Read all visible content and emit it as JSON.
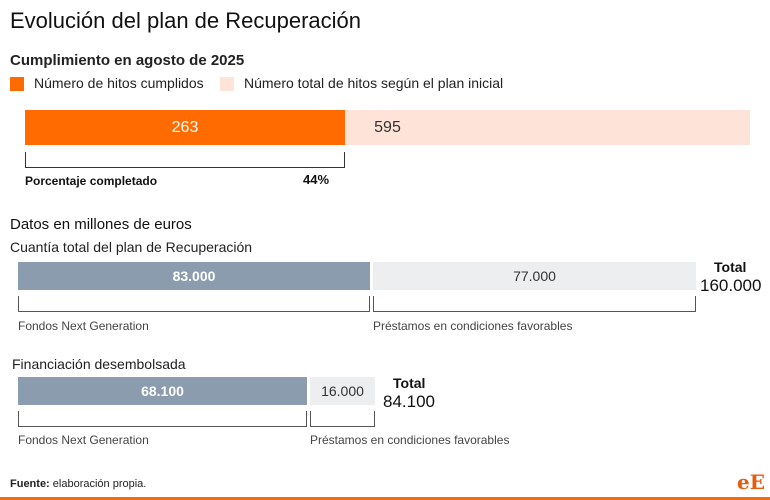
{
  "title": "Evolución del plan de Recuperación",
  "milestones": {
    "subtitle": "Cumplimiento en agosto de 2025",
    "legend": [
      {
        "label": "Número de hitos cumplidos",
        "color": "#ff6b00"
      },
      {
        "label": "Número total de hitos según el plan inicial",
        "color": "#fde3d8"
      }
    ],
    "completed": "263",
    "total": "595",
    "completed_value": 263,
    "total_value": 595,
    "percent_label": "Porcentaje completado",
    "percent_value": "44%"
  },
  "units_label": "Datos en millones de euros",
  "total_plan": {
    "label": "Cuantía total del plan de Recuperación",
    "segments": [
      {
        "label": "Fondos Next Generation",
        "value_text": "83.000",
        "value": 83000,
        "color": "#8a9cad"
      },
      {
        "label": "Préstamos en condiciones favorables",
        "value_text": "77.000",
        "value": 77000,
        "color": "#eceef0"
      }
    ],
    "total_word": "Total",
    "total_text": "160.000",
    "total_value": 160000
  },
  "disbursed": {
    "label": "Financiación desembolsada",
    "segments": [
      {
        "label": "Fondos Next Generation",
        "value_text": "68.100",
        "value": 68100,
        "color": "#8a9cad"
      },
      {
        "label": "Préstamos en condiciones favorables",
        "value_text": "16.000",
        "value": 16000,
        "color": "#eceef0"
      }
    ],
    "total_word": "Total",
    "total_text": "84.100",
    "total_value": 84100
  },
  "footer": {
    "source_label": "Fuente:",
    "source_text": " elaboración propia.",
    "logo": "eE"
  },
  "chart_data": [
    {
      "type": "bar",
      "title": "Cumplimiento en agosto de 2025",
      "series": [
        {
          "name": "Número de hitos cumplidos",
          "values": [
            263
          ]
        },
        {
          "name": "Número total de hitos según el plan inicial",
          "values": [
            595
          ]
        }
      ],
      "annotation": "Porcentaje completado 44%"
    },
    {
      "type": "bar",
      "title": "Cuantía total del plan de Recuperación",
      "categories": [
        "Fondos Next Generation",
        "Préstamos en condiciones favorables"
      ],
      "values": [
        83000,
        77000
      ],
      "total": 160000
    },
    {
      "type": "bar",
      "title": "Financiación desembolsada",
      "categories": [
        "Fondos Next Generation",
        "Préstamos en condiciones favorables"
      ],
      "values": [
        68100,
        16000
      ],
      "total": 84100
    }
  ]
}
